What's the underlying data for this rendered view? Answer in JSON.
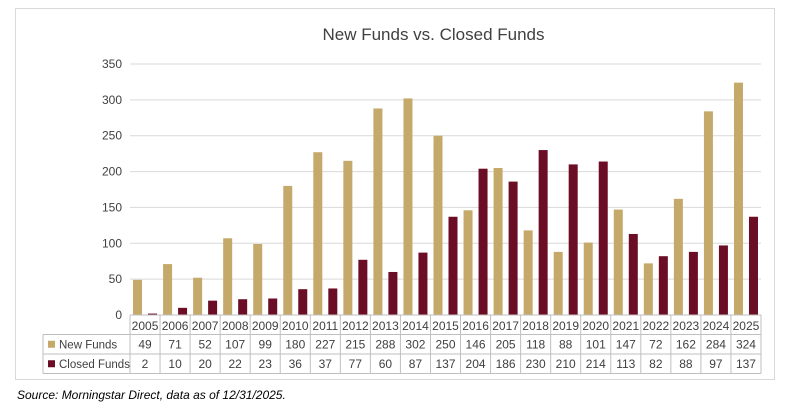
{
  "chart_data": {
    "type": "bar",
    "title": "New Funds vs. Closed Funds",
    "categories": [
      "2005",
      "2006",
      "2007",
      "2008",
      "2009",
      "2010",
      "2011",
      "2012",
      "2013",
      "2014",
      "2015",
      "2016",
      "2017",
      "2018",
      "2019",
      "2020",
      "2021",
      "2022",
      "2023",
      "2024",
      "2025"
    ],
    "series": [
      {
        "name": "New Funds",
        "color": "#c4a96a",
        "values": [
          49,
          71,
          52,
          107,
          99,
          180,
          227,
          215,
          288,
          302,
          250,
          146,
          205,
          118,
          88,
          101,
          147,
          72,
          162,
          284,
          324
        ]
      },
      {
        "name": "Closed Funds",
        "color": "#6b0d25",
        "values": [
          2,
          10,
          20,
          22,
          23,
          36,
          37,
          77,
          60,
          87,
          137,
          204,
          186,
          230,
          210,
          214,
          113,
          82,
          88,
          97,
          137
        ]
      }
    ],
    "yticks": [
      0,
      50,
      100,
      150,
      200,
      250,
      300,
      350
    ],
    "ylim": [
      0,
      350
    ],
    "grid": true,
    "legend": "data-table"
  },
  "source_note": "Source: Morningstar Direct, data as of 12/31/2025."
}
